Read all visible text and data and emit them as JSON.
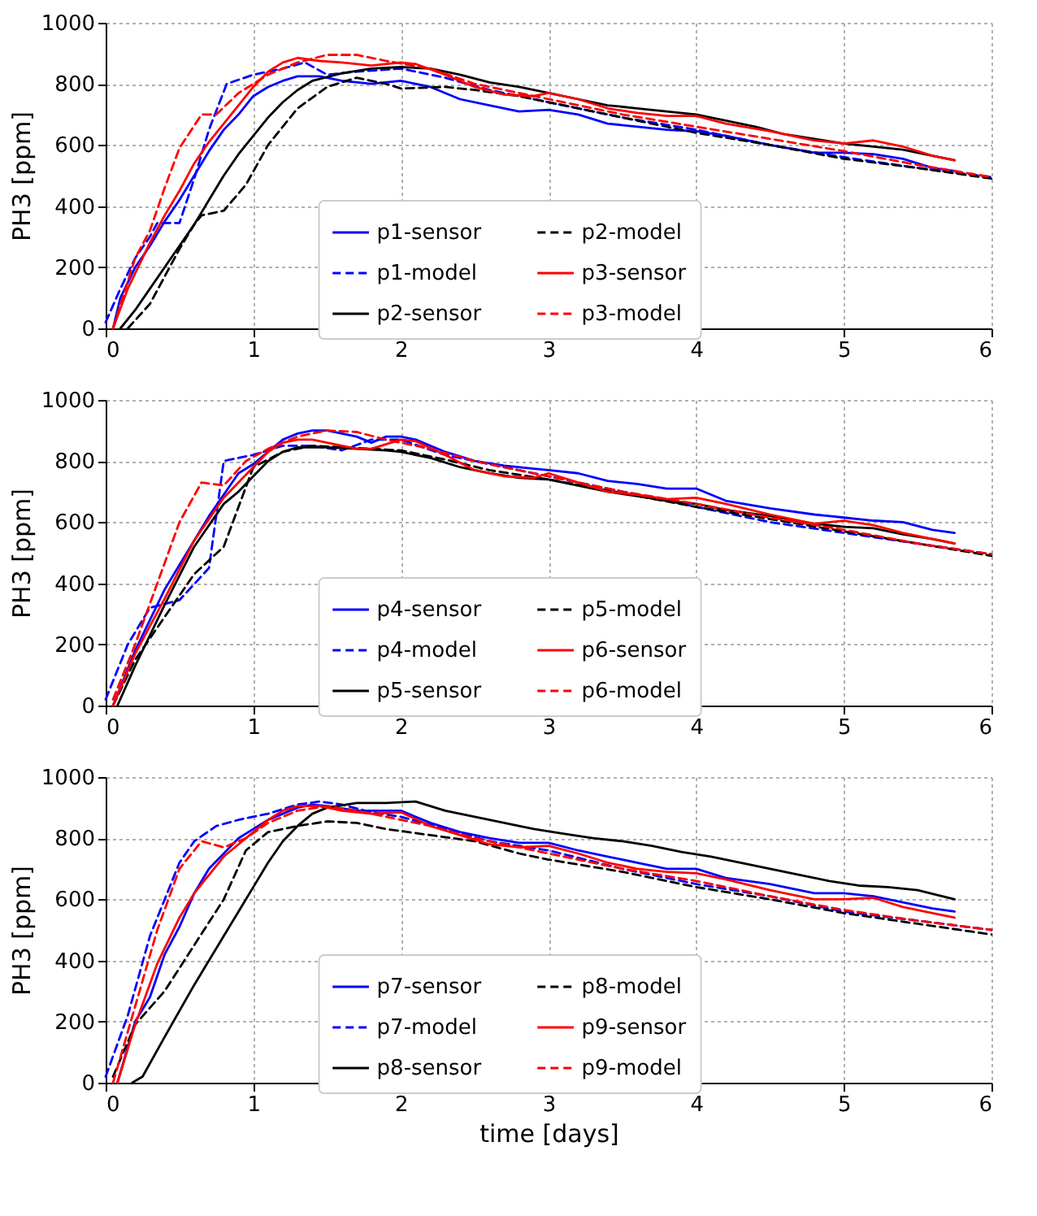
{
  "chart_data": [
    {
      "type": "line",
      "ylabel": "PH3 [ppm]",
      "xlim": [
        0,
        6
      ],
      "xticks": [
        0,
        1,
        2,
        3,
        4,
        5,
        6
      ],
      "ylim": [
        0,
        1000
      ],
      "yticks": [
        0,
        200,
        400,
        600,
        800,
        1000
      ],
      "grid": true,
      "legend": "bottom",
      "series": [
        {
          "name": "p1-sensor",
          "color": "#0000ff",
          "line_style": "solid",
          "x": [
            0.05,
            0.1,
            0.2,
            0.3,
            0.4,
            0.5,
            0.6,
            0.7,
            0.8,
            0.9,
            1.0,
            1.1,
            1.2,
            1.3,
            1.45,
            1.6,
            1.8,
            2.0,
            2.2,
            2.4,
            2.6,
            2.8,
            3.0,
            3.2,
            3.4,
            3.6,
            3.8,
            4.0,
            4.2,
            4.5,
            4.8,
            5.0,
            5.2,
            5.4,
            5.6,
            5.75
          ],
          "values": [
            0,
            100,
            200,
            270,
            350,
            420,
            500,
            580,
            650,
            700,
            760,
            790,
            810,
            825,
            825,
            810,
            800,
            810,
            790,
            750,
            730,
            710,
            715,
            700,
            670,
            660,
            650,
            645,
            630,
            600,
            575,
            575,
            570,
            555,
            525,
            515
          ]
        },
        {
          "name": "p1-model",
          "color": "#0000ff",
          "line_style": "dashed",
          "x": [
            0,
            0.1,
            0.2,
            0.3,
            0.35,
            0.5,
            0.6,
            0.7,
            0.82,
            1.0,
            1.2,
            1.35,
            1.5,
            1.7,
            2.0,
            2.3,
            2.6,
            3.0,
            3.5,
            4.0,
            4.5,
            5.0,
            5.5,
            6.0
          ],
          "values": [
            20,
            130,
            230,
            300,
            345,
            345,
            490,
            650,
            800,
            830,
            850,
            870,
            830,
            840,
            850,
            820,
            780,
            740,
            690,
            650,
            600,
            560,
            525,
            495
          ]
        },
        {
          "name": "p2-sensor",
          "color": "#000000",
          "line_style": "solid",
          "x": [
            0.1,
            0.2,
            0.3,
            0.4,
            0.5,
            0.6,
            0.7,
            0.8,
            0.9,
            1.0,
            1.1,
            1.2,
            1.3,
            1.4,
            1.6,
            1.8,
            2.0,
            2.2,
            2.4,
            2.6,
            2.8,
            3.0,
            3.2,
            3.4,
            3.6,
            3.8,
            4.0,
            4.2,
            4.4,
            4.6,
            4.8,
            5.0,
            5.2,
            5.4,
            5.6,
            5.75
          ],
          "values": [
            0,
            60,
            130,
            200,
            270,
            340,
            420,
            500,
            570,
            630,
            690,
            740,
            780,
            810,
            835,
            850,
            855,
            850,
            830,
            805,
            790,
            770,
            750,
            730,
            720,
            710,
            700,
            680,
            660,
            635,
            620,
            605,
            595,
            585,
            565,
            550
          ]
        },
        {
          "name": "p2-model",
          "color": "#000000",
          "line_style": "dashed",
          "x": [
            0.15,
            0.3,
            0.4,
            0.5,
            0.6,
            0.65,
            0.8,
            0.95,
            1.1,
            1.3,
            1.5,
            1.7,
            1.9,
            2.0,
            2.3,
            2.5,
            2.8,
            3.0,
            3.5,
            4.0,
            4.5,
            5.0,
            5.5,
            6.0
          ],
          "values": [
            0,
            80,
            170,
            260,
            340,
            370,
            385,
            470,
            600,
            720,
            790,
            820,
            800,
            785,
            790,
            780,
            760,
            740,
            690,
            640,
            600,
            555,
            525,
            490
          ]
        },
        {
          "name": "p3-sensor",
          "color": "#ff0000",
          "line_style": "solid",
          "x": [
            0.05,
            0.15,
            0.3,
            0.4,
            0.5,
            0.6,
            0.7,
            0.8,
            0.9,
            1.0,
            1.1,
            1.2,
            1.3,
            1.45,
            1.6,
            1.8,
            2.0,
            2.1,
            2.3,
            2.5,
            2.7,
            2.9,
            3.0,
            3.2,
            3.4,
            3.6,
            3.8,
            4.0,
            4.2,
            4.5,
            4.8,
            5.0,
            5.2,
            5.4,
            5.6,
            5.75
          ],
          "values": [
            0,
            130,
            280,
            370,
            450,
            540,
            610,
            670,
            730,
            790,
            840,
            870,
            885,
            875,
            870,
            860,
            870,
            865,
            830,
            790,
            765,
            760,
            770,
            750,
            720,
            705,
            695,
            695,
            670,
            645,
            615,
            605,
            615,
            595,
            565,
            550
          ]
        },
        {
          "name": "p3-model",
          "color": "#ff0000",
          "line_style": "dashed",
          "x": [
            0.05,
            0.2,
            0.3,
            0.4,
            0.5,
            0.65,
            0.75,
            0.9,
            1.1,
            1.3,
            1.5,
            1.7,
            1.9,
            2.2,
            2.5,
            2.8,
            3.0,
            3.5,
            4.0,
            4.5,
            5.0,
            5.5,
            6.0
          ],
          "values": [
            0,
            230,
            320,
            460,
            590,
            700,
            700,
            770,
            830,
            870,
            895,
            895,
            875,
            850,
            800,
            770,
            750,
            700,
            660,
            620,
            580,
            535,
            495
          ]
        }
      ]
    },
    {
      "type": "line",
      "ylabel": "PH3 [ppm]",
      "xlim": [
        0,
        6
      ],
      "xticks": [
        0,
        1,
        2,
        3,
        4,
        5,
        6
      ],
      "ylim": [
        0,
        1000
      ],
      "yticks": [
        0,
        200,
        400,
        600,
        800,
        1000
      ],
      "grid": true,
      "legend": "bottom",
      "series": [
        {
          "name": "p4-sensor",
          "color": "#0000ff",
          "line_style": "solid",
          "x": [
            0.05,
            0.2,
            0.4,
            0.5,
            0.6,
            0.7,
            0.8,
            0.9,
            1.0,
            1.1,
            1.2,
            1.3,
            1.4,
            1.5,
            1.7,
            1.8,
            1.9,
            2.0,
            2.1,
            2.3,
            2.5,
            2.7,
            2.9,
            3.0,
            3.2,
            3.4,
            3.6,
            3.8,
            4.0,
            4.2,
            4.5,
            4.8,
            5.0,
            5.2,
            5.4,
            5.6,
            5.75
          ],
          "values": [
            0,
            180,
            380,
            460,
            540,
            620,
            690,
            760,
            790,
            830,
            870,
            890,
            900,
            900,
            880,
            860,
            880,
            880,
            870,
            830,
            800,
            785,
            775,
            770,
            760,
            735,
            725,
            710,
            710,
            670,
            645,
            625,
            615,
            605,
            600,
            575,
            565
          ]
        },
        {
          "name": "p4-model",
          "color": "#0000ff",
          "line_style": "dashed",
          "x": [
            0,
            0.15,
            0.3,
            0.5,
            0.7,
            0.8,
            1.0,
            1.2,
            1.4,
            1.6,
            1.8,
            2.0,
            2.3,
            2.6,
            3.0,
            3.5,
            4.0,
            4.5,
            5.0,
            5.5,
            6.0
          ],
          "values": [
            20,
            200,
            320,
            345,
            450,
            800,
            820,
            850,
            850,
            835,
            870,
            870,
            820,
            790,
            750,
            700,
            650,
            600,
            565,
            530,
            495
          ]
        },
        {
          "name": "p5-sensor",
          "color": "#000000",
          "line_style": "solid",
          "x": [
            0.08,
            0.2,
            0.4,
            0.6,
            0.8,
            0.9,
            1.0,
            1.1,
            1.2,
            1.3,
            1.5,
            1.7,
            1.9,
            2.0,
            2.2,
            2.4,
            2.6,
            2.8,
            3.0,
            3.2,
            3.4,
            3.6,
            3.8,
            4.0,
            4.2,
            4.5,
            4.8,
            5.0,
            5.2,
            5.4,
            5.6,
            5.75
          ],
          "values": [
            0,
            130,
            330,
            520,
            660,
            700,
            750,
            800,
            830,
            845,
            845,
            840,
            835,
            830,
            810,
            780,
            760,
            745,
            740,
            720,
            700,
            685,
            670,
            660,
            640,
            620,
            595,
            585,
            580,
            560,
            545,
            530
          ]
        },
        {
          "name": "p5-model",
          "color": "#000000",
          "line_style": "dashed",
          "x": [
            0.05,
            0.2,
            0.4,
            0.6,
            0.8,
            0.9,
            1.0,
            1.2,
            1.4,
            1.6,
            1.8,
            2.0,
            2.3,
            2.6,
            3.0,
            3.5,
            4.0,
            4.5,
            5.0,
            5.5,
            6.0
          ],
          "values": [
            0,
            150,
            290,
            430,
            520,
            650,
            780,
            830,
            850,
            845,
            840,
            835,
            805,
            770,
            740,
            695,
            650,
            610,
            570,
            530,
            490
          ]
        },
        {
          "name": "p6-sensor",
          "color": "#ff0000",
          "line_style": "solid",
          "x": [
            0.05,
            0.2,
            0.4,
            0.6,
            0.8,
            0.9,
            1.0,
            1.1,
            1.2,
            1.3,
            1.4,
            1.5,
            1.7,
            1.8,
            2.0,
            2.1,
            2.3,
            2.5,
            2.7,
            2.9,
            3.0,
            3.2,
            3.4,
            3.6,
            3.8,
            4.0,
            4.2,
            4.5,
            4.8,
            5.0,
            5.2,
            5.4,
            5.6,
            5.75
          ],
          "values": [
            0,
            170,
            350,
            540,
            680,
            730,
            780,
            830,
            860,
            870,
            870,
            860,
            840,
            840,
            870,
            865,
            820,
            770,
            750,
            745,
            760,
            730,
            700,
            690,
            675,
            680,
            660,
            625,
            595,
            605,
            590,
            565,
            545,
            530
          ]
        },
        {
          "name": "p6-model",
          "color": "#ff0000",
          "line_style": "dashed",
          "x": [
            0.05,
            0.2,
            0.35,
            0.5,
            0.65,
            0.8,
            0.95,
            1.1,
            1.3,
            1.5,
            1.7,
            1.9,
            2.2,
            2.5,
            2.8,
            3.0,
            3.5,
            4.0,
            4.5,
            5.0,
            5.5,
            6.0
          ],
          "values": [
            20,
            200,
            400,
            600,
            730,
            720,
            800,
            840,
            880,
            900,
            895,
            870,
            840,
            800,
            770,
            750,
            700,
            660,
            615,
            575,
            530,
            495
          ]
        }
      ]
    },
    {
      "type": "line",
      "ylabel": "PH3 [ppm]",
      "xlabel": "time [days]",
      "xlim": [
        0,
        6
      ],
      "xticks": [
        0,
        1,
        2,
        3,
        4,
        5,
        6
      ],
      "ylim": [
        0,
        1000
      ],
      "yticks": [
        0,
        200,
        400,
        600,
        800,
        1000
      ],
      "grid": true,
      "legend": "bottom",
      "series": [
        {
          "name": "p7-sensor",
          "color": "#0000ff",
          "line_style": "solid",
          "x": [
            0.08,
            0.2,
            0.3,
            0.4,
            0.5,
            0.6,
            0.7,
            0.8,
            0.9,
            1.0,
            1.1,
            1.2,
            1.3,
            1.4,
            1.5,
            1.7,
            1.9,
            2.0,
            2.2,
            2.4,
            2.6,
            2.8,
            3.0,
            3.2,
            3.4,
            3.6,
            3.8,
            4.0,
            4.2,
            4.5,
            4.8,
            5.0,
            5.2,
            5.4,
            5.6,
            5.75
          ],
          "values": [
            0,
            200,
            280,
            420,
            510,
            620,
            700,
            750,
            800,
            830,
            860,
            880,
            900,
            910,
            905,
            890,
            890,
            890,
            850,
            820,
            800,
            785,
            785,
            760,
            740,
            720,
            700,
            700,
            670,
            650,
            620,
            620,
            610,
            590,
            570,
            560
          ]
        },
        {
          "name": "p7-model",
          "color": "#0000ff",
          "line_style": "dashed",
          "x": [
            0,
            0.15,
            0.3,
            0.4,
            0.5,
            0.6,
            0.75,
            0.9,
            1.1,
            1.3,
            1.45,
            1.6,
            1.8,
            2.0,
            2.3,
            2.6,
            3.0,
            3.5,
            4.0,
            4.5,
            5.0,
            5.5,
            6.0
          ],
          "values": [
            20,
            220,
            480,
            600,
            720,
            790,
            840,
            860,
            880,
            910,
            920,
            910,
            885,
            870,
            830,
            790,
            760,
            700,
            650,
            610,
            560,
            530,
            500
          ]
        },
        {
          "name": "p8-sensor",
          "color": "#000000",
          "line_style": "solid",
          "x": [
            0.18,
            0.25,
            0.4,
            0.6,
            0.8,
            0.9,
            1.0,
            1.1,
            1.2,
            1.3,
            1.4,
            1.5,
            1.7,
            1.9,
            2.1,
            2.3,
            2.5,
            2.7,
            2.9,
            3.1,
            3.3,
            3.5,
            3.7,
            3.9,
            4.1,
            4.3,
            4.5,
            4.7,
            4.9,
            5.1,
            5.3,
            5.5,
            5.75
          ],
          "values": [
            0,
            20,
            150,
            320,
            480,
            560,
            640,
            720,
            790,
            840,
            880,
            900,
            915,
            915,
            920,
            890,
            870,
            850,
            830,
            815,
            800,
            790,
            775,
            755,
            740,
            720,
            700,
            680,
            660,
            645,
            640,
            630,
            600
          ]
        },
        {
          "name": "p8-model",
          "color": "#000000",
          "line_style": "dashed",
          "x": [
            0.05,
            0.2,
            0.4,
            0.6,
            0.8,
            0.95,
            1.1,
            1.3,
            1.5,
            1.7,
            1.9,
            2.2,
            2.5,
            2.8,
            3.0,
            3.5,
            4.0,
            4.5,
            5.0,
            5.5,
            6.0
          ],
          "values": [
            20,
            190,
            300,
            450,
            600,
            760,
            820,
            840,
            855,
            850,
            830,
            810,
            790,
            750,
            730,
            690,
            640,
            600,
            555,
            520,
            485
          ]
        },
        {
          "name": "p9-sensor",
          "color": "#ff0000",
          "line_style": "solid",
          "x": [
            0.08,
            0.2,
            0.35,
            0.5,
            0.6,
            0.7,
            0.8,
            0.9,
            1.0,
            1.1,
            1.2,
            1.3,
            1.45,
            1.6,
            1.8,
            2.0,
            2.2,
            2.4,
            2.6,
            2.8,
            3.0,
            3.2,
            3.4,
            3.6,
            3.8,
            4.0,
            4.2,
            4.5,
            4.8,
            5.0,
            5.2,
            5.4,
            5.6,
            5.75
          ],
          "values": [
            0,
            190,
            390,
            540,
            620,
            680,
            740,
            780,
            820,
            860,
            890,
            905,
            905,
            890,
            880,
            885,
            840,
            810,
            780,
            770,
            775,
            750,
            720,
            700,
            690,
            685,
            665,
            630,
            600,
            600,
            605,
            575,
            555,
            540
          ]
        },
        {
          "name": "p9-model",
          "color": "#ff0000",
          "line_style": "dashed",
          "x": [
            0.05,
            0.2,
            0.35,
            0.5,
            0.65,
            0.8,
            0.95,
            1.1,
            1.3,
            1.5,
            1.7,
            1.9,
            2.2,
            2.5,
            2.8,
            3.0,
            3.5,
            4.0,
            4.5,
            5.0,
            5.5,
            6.0
          ],
          "values": [
            0,
            250,
            500,
            700,
            790,
            770,
            800,
            850,
            890,
            905,
            890,
            870,
            840,
            800,
            770,
            750,
            700,
            660,
            610,
            565,
            530,
            500
          ]
        }
      ]
    }
  ]
}
